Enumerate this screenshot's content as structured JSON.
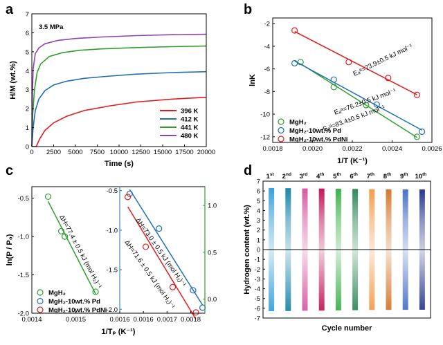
{
  "chart_data": [
    {
      "panel": "a",
      "type": "line",
      "annotation": "3.5 MPa",
      "xlabel": "Time (s)",
      "ylabel": "H/M (wt.%)",
      "xlim": [
        0,
        20000
      ],
      "ylim": [
        0,
        7
      ],
      "xticks": [
        0,
        2500,
        5000,
        7500,
        10000,
        12500,
        15000,
        17500,
        20000
      ],
      "yticks": [
        0,
        1,
        2,
        3,
        4,
        5,
        6,
        7
      ],
      "legend": "bottom-right",
      "series": [
        {
          "name": "396 K",
          "color": "#e41a1c",
          "x": [
            0,
            500,
            900,
            1500,
            2500,
            4000,
            6000,
            9000,
            12000,
            16000,
            20000
          ],
          "y": [
            0,
            0,
            0.4,
            0.85,
            1.25,
            1.6,
            1.9,
            2.15,
            2.35,
            2.5,
            2.6
          ]
        },
        {
          "name": "412 K",
          "color": "#1f6fb2",
          "x": [
            0,
            150,
            400,
            800,
            1500,
            2500,
            4000,
            6000,
            9000,
            12000,
            16000,
            20000
          ],
          "y": [
            0,
            1.0,
            1.9,
            2.5,
            2.95,
            3.25,
            3.45,
            3.6,
            3.72,
            3.82,
            3.9,
            3.95
          ]
        },
        {
          "name": "441 K",
          "color": "#2e9e2e",
          "x": [
            0,
            100,
            300,
            600,
            1000,
            2000,
            3500,
            5500,
            8000,
            12000,
            16000,
            20000
          ],
          "y": [
            0,
            1.7,
            3.0,
            3.9,
            4.35,
            4.75,
            4.95,
            5.08,
            5.15,
            5.22,
            5.27,
            5.3
          ]
        },
        {
          "name": "480 K",
          "color": "#8e44ad",
          "x": [
            0,
            50,
            150,
            400,
            800,
            1500,
            3000,
            5000,
            8000,
            12000,
            16000,
            20000
          ],
          "y": [
            0,
            2.5,
            4.1,
            4.9,
            5.2,
            5.42,
            5.6,
            5.7,
            5.78,
            5.85,
            5.9,
            5.92
          ]
        }
      ]
    },
    {
      "panel": "b",
      "type": "scatter",
      "xlabel": "1/T (K⁻¹)",
      "ylabel": "lnK",
      "xlim": [
        0.0018,
        0.0026
      ],
      "ylim": [
        -12.5,
        -1.5
      ],
      "xticks": [
        0.0018,
        0.002,
        0.0022,
        0.0024,
        0.0026
      ],
      "yticks": [
        -2,
        -4,
        -6,
        -8,
        -10,
        -12
      ],
      "legend": "bottom-left",
      "series": [
        {
          "name": "MgH₂",
          "color": "#2e9e2e",
          "x": [
            0.00194,
            0.002107,
            0.002269,
            0.002525
          ],
          "y": [
            -5.4,
            -7.6,
            -9.2,
            -12.0
          ],
          "fit_label": "Eₐᵃ=83.4±0.5 kJ mol⁻¹"
        },
        {
          "name": "MgH₂-10wt.% Pd",
          "color": "#1f6fb2",
          "x": [
            0.00191,
            0.002107,
            0.002323,
            0.00255
          ],
          "y": [
            -5.5,
            -6.95,
            -9.15,
            -11.55
          ],
          "fit_label": "Eₐᵃ=76.2±0.5 kJ mol⁻¹"
        },
        {
          "name": "MgH₂-10wt.% PdNi",
          "color": "#e41a1c",
          "x": [
            0.00191,
            0.002182,
            0.00238,
            0.002525
          ],
          "y": [
            -2.6,
            -5.4,
            -6.8,
            -8.3
          ],
          "fit_label": "Eₐᵃ=73.9±0.5 kJ mol⁻¹"
        }
      ]
    },
    {
      "panel": "c",
      "type": "scatter",
      "xlabel": "1/Tₚ (K⁻¹)",
      "ylabel": "ln(P / P₀)",
      "left": {
        "xlim": [
          0.0014,
          0.0016
        ],
        "xticks": [
          0.0014,
          0.0015,
          0.0016
        ],
        "ylim": [
          -2.0,
          -0.35
        ],
        "yticks": [
          -0.5,
          -1.0,
          -1.5,
          -2.0
        ],
        "series": [
          {
            "name": "MgH₂",
            "color": "#2e9e2e",
            "x": [
              0.001437,
              0.001467,
              0.001475,
              0.001545
            ],
            "y": [
              -0.48,
              -0.93,
              -1.0,
              -1.72
            ],
            "fit_label": "ΔH=77.4 ± 0.5 kJ (mol H₂)⁻¹"
          }
        ]
      },
      "right": {
        "xlim": [
          0.0016,
          0.00178
        ],
        "xticks": [
          0.0016,
          0.00165,
          0.0017,
          0.00175
        ],
        "ylim": [
          -2.05,
          -0.45
        ],
        "yticks": [
          -0.5,
          -1.0,
          -1.5,
          -2.0
        ],
        "y2lim": [
          -0.15,
          1.2
        ],
        "y2ticks": [
          0.0,
          0.5,
          1.0
        ],
        "series": [
          {
            "name": "MgH₂-10wt.% Pd",
            "color": "#1f6fb2",
            "x": [
              0.001621,
              0.001683,
              0.001755,
              0.001775
            ],
            "y": [
              -0.54,
              -0.98,
              -1.76,
              -1.98
            ],
            "fit_label": "ΔH=73.0 ± 0.5 kJ (mol H₂)⁻¹"
          },
          {
            "name": "MgH₂-10wt.% PdNi",
            "color": "#e41a1c",
            "x": [
              0.001617,
              0.001655,
              0.001712,
              0.001761
            ],
            "y": [
              -0.58,
              -1.21,
              -1.72,
              -2.04
            ],
            "fit_label": "ΔH=71.6 ± 0.5 kJ (mol H₂)⁻¹"
          }
        ]
      },
      "legend": "bottom-left"
    },
    {
      "panel": "d",
      "type": "bar",
      "xlabel": "Cycle number",
      "ylabel": "Hydrogen content (wt.%)",
      "ylim": [
        -7,
        7
      ],
      "yticks": [
        7,
        6,
        5,
        4,
        3,
        2,
        1,
        0,
        -1,
        -2,
        -3,
        -4,
        -5,
        -6,
        -7
      ],
      "categories": [
        "1st",
        "2nd",
        "3rd",
        "4th",
        "5th",
        "6th",
        "7th",
        "8th",
        "9th",
        "10th"
      ],
      "category_labels": [
        {
          "n": "1",
          "sup": "st"
        },
        {
          "n": "2",
          "sup": "nd"
        },
        {
          "n": "3",
          "sup": "rd"
        },
        {
          "n": "4",
          "sup": "th"
        },
        {
          "n": "5",
          "sup": "th"
        },
        {
          "n": "6",
          "sup": "th"
        },
        {
          "n": "7",
          "sup": "th"
        },
        {
          "n": "8",
          "sup": "th"
        },
        {
          "n": "9",
          "sup": "th"
        },
        {
          "n": "10",
          "sup": "th"
        }
      ],
      "absorption": [
        6.3,
        6.28,
        6.25,
        6.24,
        6.22,
        6.2,
        6.18,
        6.17,
        6.16,
        6.15
      ],
      "desorption": [
        -6.3,
        -6.28,
        -6.25,
        -6.24,
        -6.22,
        -6.2,
        -6.18,
        -6.17,
        -6.16,
        -6.15
      ],
      "colors": [
        "#3aa0d8",
        "#1a85a8",
        "#d45aa3",
        "#c2185b",
        "#3cb04a",
        "#2e8b57",
        "#f39c4d",
        "#d4772a",
        "#4a72c4",
        "#2a3a8a"
      ]
    }
  ],
  "panel_labels": [
    "a",
    "b",
    "c",
    "d"
  ]
}
